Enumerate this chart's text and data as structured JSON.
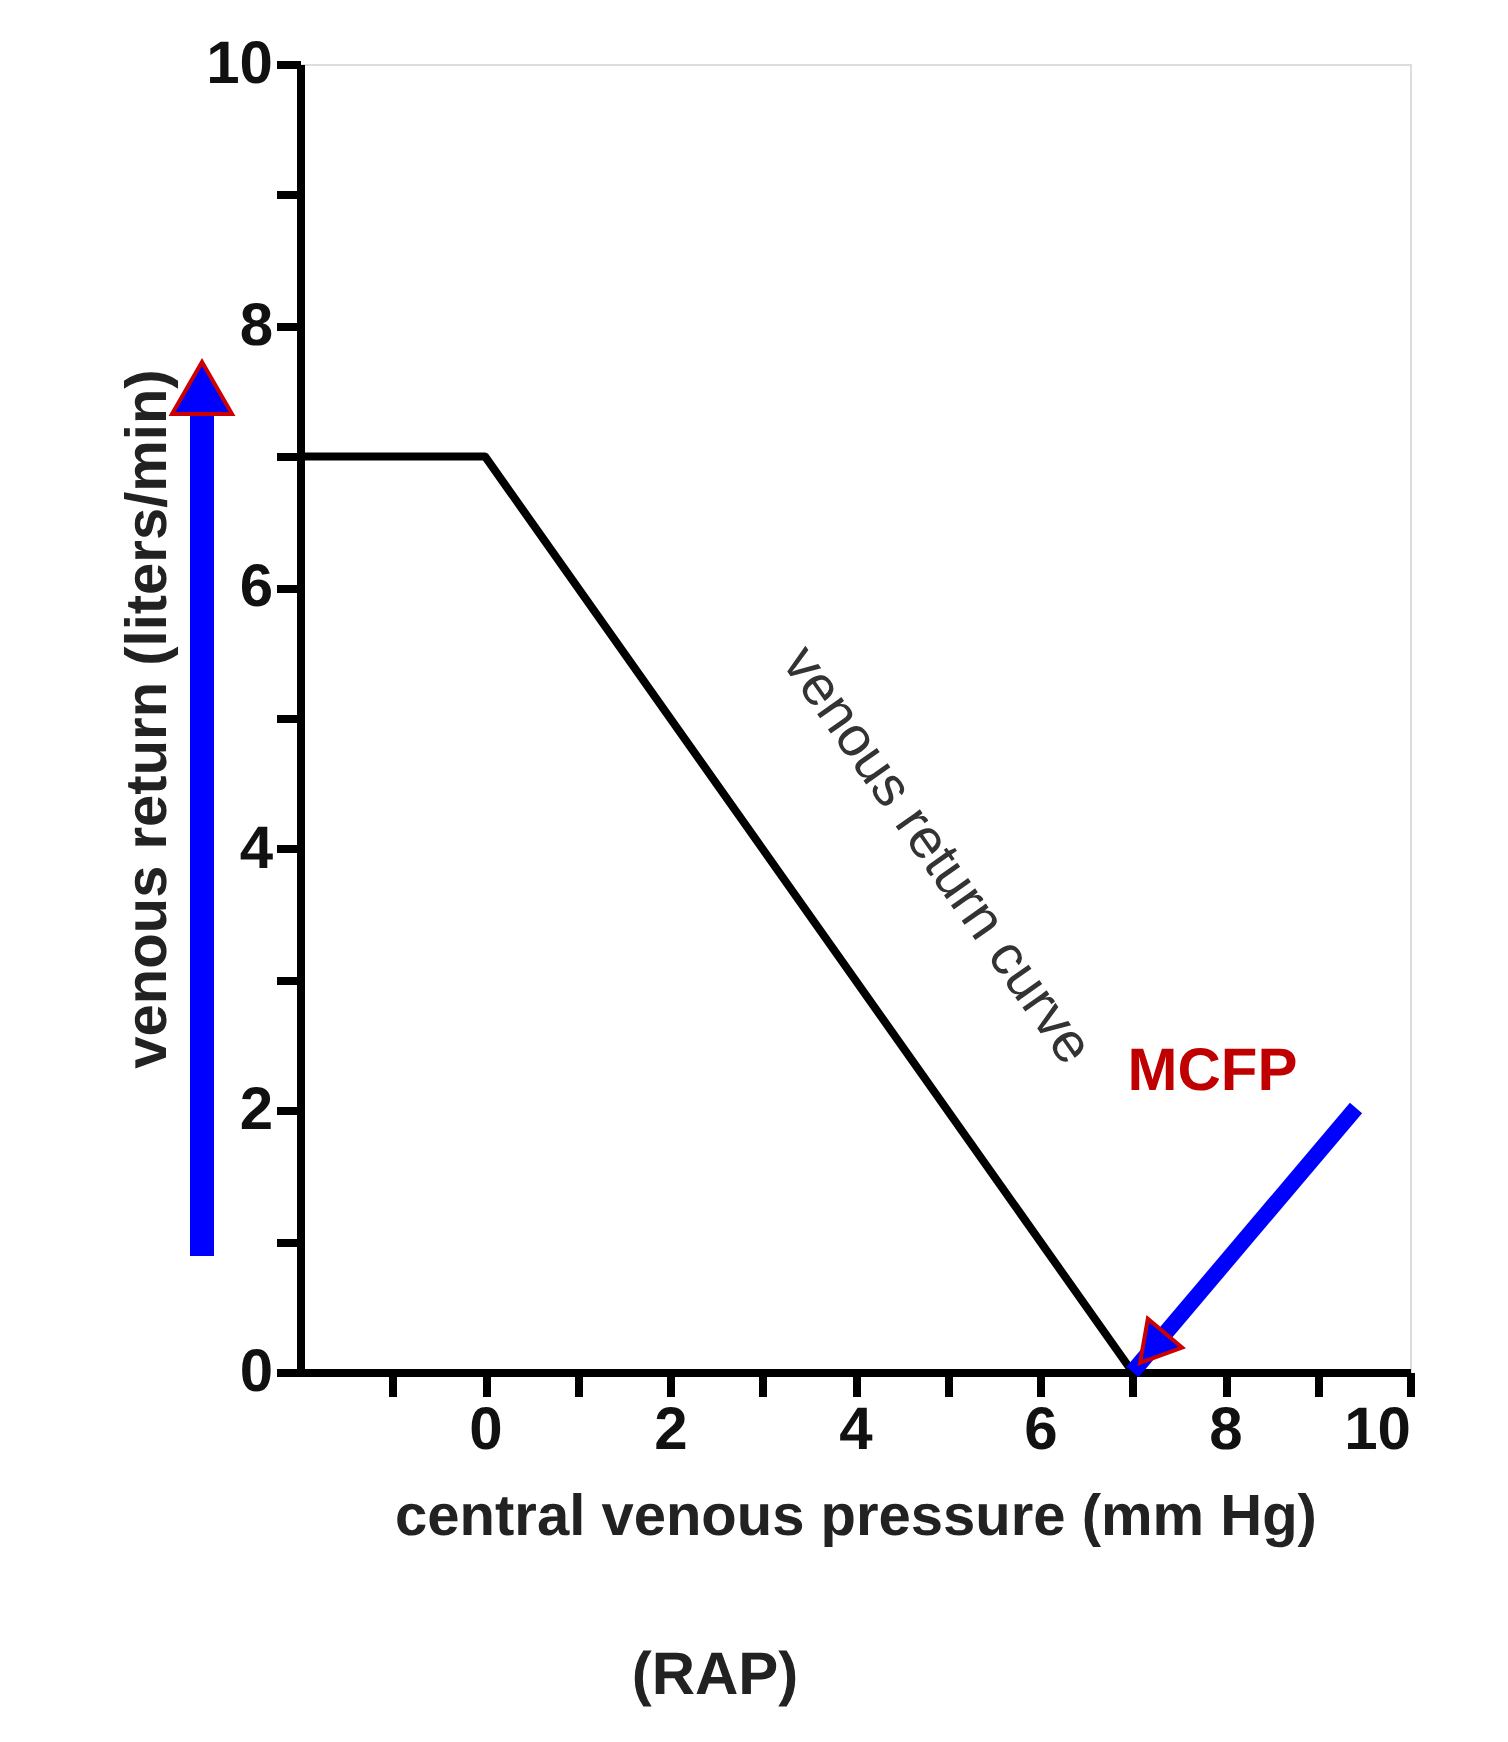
{
  "chart_data": {
    "type": "line",
    "xlabel": "central venous pressure (mm Hg)",
    "ylabel": "venous return (liters/min)",
    "x": [
      -2,
      0,
      7
    ],
    "series": [
      {
        "color": "#000000",
        "values": [
          7,
          7,
          0
        ]
      }
    ],
    "xlim": [
      -2,
      10
    ],
    "ylim": [
      0,
      10
    ],
    "xticks": [
      {
        "value": -1,
        "label": null
      },
      0,
      {
        "value": 1,
        "label": null
      },
      2,
      {
        "value": 3,
        "label": null
      },
      4,
      {
        "value": 5,
        "label": null
      },
      6,
      {
        "value": 7,
        "label": null
      },
      8,
      {
        "value": 9,
        "label": null
      },
      10
    ],
    "yticks": [
      0,
      {
        "value": 1,
        "label": null
      },
      2,
      {
        "value": 3,
        "label": null
      },
      4,
      {
        "value": 5,
        "label": null
      },
      6,
      {
        "value": 7,
        "label": null
      },
      8,
      {
        "value": 9,
        "label": null
      },
      10
    ],
    "grid": false,
    "marker": "none",
    "line_style": "solid",
    "annotations": [
      "venous return curve",
      {
        "text": "MCFP",
        "x": 7,
        "y": 0
      },
      "(RAP)"
    ]
  }
}
